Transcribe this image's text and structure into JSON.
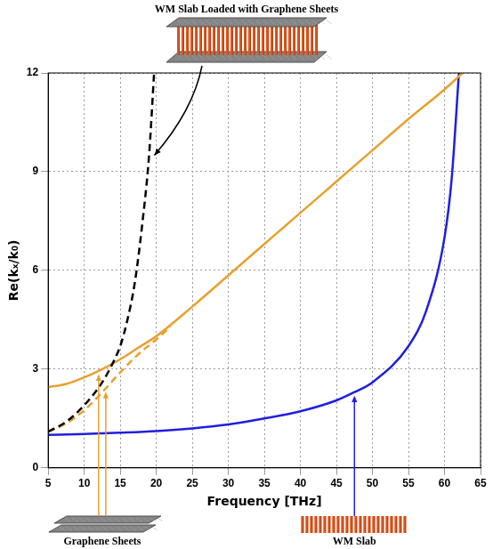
{
  "chart_data": {
    "type": "line",
    "x_label": "Frequency [THz]",
    "y_label": "Re(kₓ/k₀)",
    "xlim": [
      5,
      65
    ],
    "xticks": [
      5,
      10,
      15,
      20,
      25,
      30,
      35,
      40,
      45,
      50,
      55,
      60,
      65
    ],
    "ylim": [
      0,
      12
    ],
    "yticks": [
      0,
      3,
      6,
      9,
      12
    ],
    "grid": true,
    "series": [
      {
        "name": "WM Slab Loaded with Graphene Sheets",
        "color": "#000000",
        "line_style": "dashed",
        "x": [
          5,
          7.5,
          10,
          12.5,
          14,
          15,
          16,
          17,
          18,
          19,
          19.7
        ],
        "values": [
          1.1,
          1.4,
          1.9,
          2.6,
          3.2,
          3.7,
          4.5,
          5.6,
          7.3,
          9.5,
          12
        ]
      },
      {
        "name": "Graphene Sheets",
        "color": "#e8a030",
        "line_style": "solid",
        "x": [
          5,
          7.5,
          10,
          12.5,
          15,
          17.5,
          20,
          25,
          30,
          35,
          40,
          45,
          50,
          55,
          60,
          62.5
        ],
        "values": [
          2.45,
          2.55,
          2.75,
          3.0,
          3.3,
          3.65,
          4.0,
          4.9,
          5.85,
          6.8,
          7.75,
          8.7,
          9.65,
          10.6,
          11.5,
          12
        ]
      },
      {
        "name": "Graphene Sheets",
        "color": "#e8a030",
        "line_style": "dashed",
        "x": [
          5,
          7.5,
          10,
          12.5,
          15,
          17.5,
          20,
          22
        ],
        "values": [
          1.1,
          1.35,
          1.75,
          2.3,
          2.9,
          3.45,
          3.9,
          4.3
        ]
      },
      {
        "name": "WM Slab",
        "color": "#1f1fe0",
        "line_style": "solid",
        "x": [
          5,
          10,
          15,
          20,
          25,
          30,
          35,
          40,
          45,
          47.5,
          50,
          55,
          57.5,
          60,
          61,
          62
        ],
        "values": [
          1.0,
          1.03,
          1.07,
          1.12,
          1.2,
          1.32,
          1.5,
          1.72,
          2.05,
          2.3,
          2.6,
          3.7,
          4.8,
          7.0,
          8.8,
          12
        ]
      }
    ]
  }
}
